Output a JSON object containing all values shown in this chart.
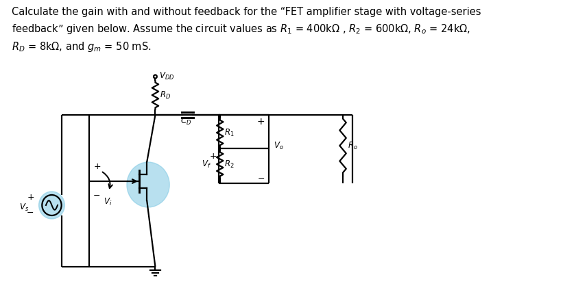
{
  "bg_color": "#ffffff",
  "text_color": "#000000",
  "fig_width": 8.4,
  "fig_height": 4.43,
  "header_text": "Calculate the gain with and without feedback for the “FET amplifier stage with voltage-series\nfeedback” given below. Assume the circuit values as $R_1$ = 400kΩ , $R_2$ = 600kΩ, $R_o$ = 24kΩ,\n$R_D$ = 8kΩ, and $g_m$ = 50 mS.",
  "header_fontsize": 10.5,
  "circuit_color": "#000000",
  "highlight_color": "#7ec8e3",
  "highlight_alpha": 0.55
}
